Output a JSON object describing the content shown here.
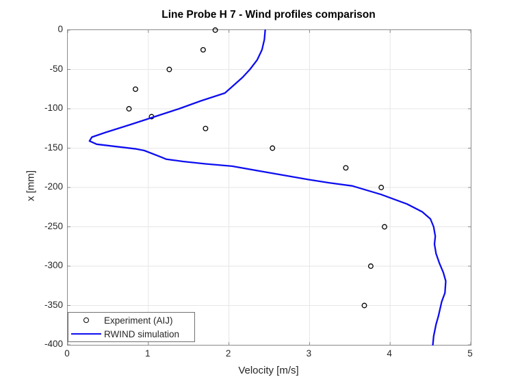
{
  "chart_data": {
    "type": "line",
    "title": "Line Probe H 7 - Wind profiles comparison",
    "xlabel": "Velocity [m/s]",
    "ylabel": "x [mm]",
    "xlim": [
      0,
      5
    ],
    "ylim": [
      -400,
      0
    ],
    "x_ticks": [
      0,
      1,
      2,
      3,
      4,
      5
    ],
    "y_ticks": [
      0,
      -50,
      -100,
      -150,
      -200,
      -250,
      -300,
      -350,
      -400
    ],
    "grid": true,
    "legend_position": "bottom-left",
    "colors": {
      "experiment_marker": "#000000",
      "simulation_line": "#0d0df0",
      "axis_frame": "#898989",
      "gridline": "#e6e6e6",
      "tick_text": "#262626"
    },
    "series": [
      {
        "name": "Experiment (AIJ)",
        "type": "scatter",
        "marker": "circle",
        "color": "#000000",
        "points": [
          [
            1.83,
            0
          ],
          [
            1.68,
            -25
          ],
          [
            1.26,
            -50
          ],
          [
            0.84,
            -75
          ],
          [
            0.76,
            -100
          ],
          [
            1.04,
            -110
          ],
          [
            1.71,
            -125
          ],
          [
            2.54,
            -150
          ],
          [
            3.45,
            -175
          ],
          [
            3.89,
            -200
          ],
          [
            3.93,
            -250
          ],
          [
            3.76,
            -300
          ],
          [
            3.68,
            -350
          ]
        ]
      },
      {
        "name": "RWIND simulation",
        "type": "line",
        "color": "#0d0df0",
        "points": [
          [
            2.45,
            0
          ],
          [
            2.44,
            -12
          ],
          [
            2.41,
            -25
          ],
          [
            2.35,
            -38
          ],
          [
            2.26,
            -50
          ],
          [
            2.17,
            -60
          ],
          [
            2.06,
            -70
          ],
          [
            1.95,
            -80
          ],
          [
            1.65,
            -90
          ],
          [
            1.38,
            -100
          ],
          [
            1.08,
            -110
          ],
          [
            0.78,
            -120
          ],
          [
            0.47,
            -130
          ],
          [
            0.3,
            -136
          ],
          [
            0.27,
            -141
          ],
          [
            0.36,
            -145
          ],
          [
            0.6,
            -148
          ],
          [
            0.85,
            -151
          ],
          [
            0.95,
            -153
          ],
          [
            1.15,
            -161
          ],
          [
            1.22,
            -164
          ],
          [
            1.43,
            -167
          ],
          [
            1.71,
            -170
          ],
          [
            2.04,
            -173
          ],
          [
            2.43,
            -180
          ],
          [
            2.99,
            -190
          ],
          [
            3.24,
            -194
          ],
          [
            3.53,
            -198
          ],
          [
            3.89,
            -209
          ],
          [
            4.21,
            -221
          ],
          [
            4.4,
            -231
          ],
          [
            4.5,
            -240
          ],
          [
            4.54,
            -250
          ],
          [
            4.56,
            -262
          ],
          [
            4.55,
            -272
          ],
          [
            4.57,
            -284
          ],
          [
            4.61,
            -296
          ],
          [
            4.66,
            -308
          ],
          [
            4.69,
            -319
          ],
          [
            4.68,
            -334
          ],
          [
            4.64,
            -345
          ],
          [
            4.6,
            -363
          ],
          [
            4.57,
            -374
          ],
          [
            4.54,
            -389
          ],
          [
            4.53,
            -400
          ]
        ]
      }
    ]
  }
}
